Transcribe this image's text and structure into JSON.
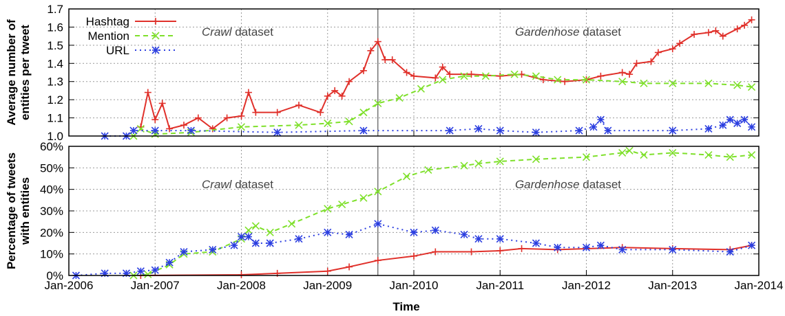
{
  "chart_data": [
    {
      "type": "line",
      "ylabel": "Average number of entities per tweet",
      "ylabel_lines": [
        "Average number of",
        "entities per tweet"
      ],
      "ylim": [
        1.0,
        1.7
      ],
      "yticks": [
        "1.0",
        "1.1",
        "1.2",
        "1.3",
        "1.4",
        "1.5",
        "1.6",
        "1.7"
      ],
      "grid": true,
      "legend": "top-left",
      "annotations": [
        {
          "italic": "Crawl",
          "text": " dataset"
        },
        {
          "italic": "Gardenhose",
          "text": " dataset"
        }
      ],
      "series": [
        {
          "name": "Hashtag",
          "color": "#e0302a",
          "marker": "plus",
          "points": [
            [
              "2006-11",
              1.05
            ],
            [
              "2006-12",
              1.24
            ],
            [
              "2007-01",
              1.09
            ],
            [
              "2007-02",
              1.18
            ],
            [
              "2007-03",
              1.04
            ],
            [
              "2007-05",
              1.06
            ],
            [
              "2007-07",
              1.1
            ],
            [
              "2007-09",
              1.04
            ],
            [
              "2007-11",
              1.1
            ],
            [
              "2008-01",
              1.11
            ],
            [
              "2008-02",
              1.24
            ],
            [
              "2008-03",
              1.13
            ],
            [
              "2008-06",
              1.13
            ],
            [
              "2008-09",
              1.17
            ],
            [
              "2008-12",
              1.13
            ],
            [
              "2009-01",
              1.22
            ],
            [
              "2009-02",
              1.25
            ],
            [
              "2009-03",
              1.22
            ],
            [
              "2009-04",
              1.3
            ],
            [
              "2009-06",
              1.36
            ],
            [
              "2009-07",
              1.47
            ],
            [
              "2009-08",
              1.52
            ],
            [
              "2009-09",
              1.42
            ],
            [
              "2009-10",
              1.42
            ],
            [
              "2009-12",
              1.35
            ],
            [
              "2010-01",
              1.33
            ],
            [
              "2010-04",
              1.32
            ],
            [
              "2010-05",
              1.38
            ],
            [
              "2010-06",
              1.34
            ],
            [
              "2010-09",
              1.34
            ],
            [
              "2011-01",
              1.33
            ],
            [
              "2011-04",
              1.34
            ],
            [
              "2011-07",
              1.31
            ],
            [
              "2011-10",
              1.3
            ],
            [
              "2012-01",
              1.31
            ],
            [
              "2012-03",
              1.33
            ],
            [
              "2012-06",
              1.35
            ],
            [
              "2012-07",
              1.34
            ],
            [
              "2012-08",
              1.4
            ],
            [
              "2012-10",
              1.41
            ],
            [
              "2012-11",
              1.46
            ],
            [
              "2013-01",
              1.48
            ],
            [
              "2013-02",
              1.51
            ],
            [
              "2013-04",
              1.56
            ],
            [
              "2013-06",
              1.57
            ],
            [
              "2013-07",
              1.58
            ],
            [
              "2013-08",
              1.55
            ],
            [
              "2013-10",
              1.59
            ],
            [
              "2013-11",
              1.61
            ],
            [
              "2013-12",
              1.64
            ]
          ]
        },
        {
          "name": "Mention",
          "color": "#7ee02a",
          "marker": "cross",
          "points": [
            [
              "2006-10",
              1.0
            ],
            [
              "2006-11",
              1.04
            ],
            [
              "2007-01",
              1.01
            ],
            [
              "2007-06",
              1.02
            ],
            [
              "2008-01",
              1.05
            ],
            [
              "2008-09",
              1.06
            ],
            [
              "2009-01",
              1.07
            ],
            [
              "2009-04",
              1.08
            ],
            [
              "2009-06",
              1.13
            ],
            [
              "2009-08",
              1.18
            ],
            [
              "2009-11",
              1.21
            ],
            [
              "2010-02",
              1.26
            ],
            [
              "2010-05",
              1.31
            ],
            [
              "2010-08",
              1.33
            ],
            [
              "2010-11",
              1.33
            ],
            [
              "2011-03",
              1.34
            ],
            [
              "2011-06",
              1.33
            ],
            [
              "2011-09",
              1.31
            ],
            [
              "2012-01",
              1.31
            ],
            [
              "2012-06",
              1.3
            ],
            [
              "2012-09",
              1.29
            ],
            [
              "2013-01",
              1.29
            ],
            [
              "2013-06",
              1.29
            ],
            [
              "2013-10",
              1.28
            ],
            [
              "2013-12",
              1.27
            ]
          ]
        },
        {
          "name": "URL",
          "color": "#2b3ee0",
          "marker": "star",
          "points": [
            [
              "2006-06",
              1.0
            ],
            [
              "2006-09",
              1.0
            ],
            [
              "2006-10",
              1.03
            ],
            [
              "2007-01",
              1.03
            ],
            [
              "2007-06",
              1.03
            ],
            [
              "2008-06",
              1.02
            ],
            [
              "2009-06",
              1.03
            ],
            [
              "2010-06",
              1.03
            ],
            [
              "2010-10",
              1.04
            ],
            [
              "2011-01",
              1.03
            ],
            [
              "2011-06",
              1.02
            ],
            [
              "2011-12",
              1.03
            ],
            [
              "2012-02",
              1.05
            ],
            [
              "2012-03",
              1.09
            ],
            [
              "2012-04",
              1.03
            ],
            [
              "2013-01",
              1.03
            ],
            [
              "2013-06",
              1.04
            ],
            [
              "2013-08",
              1.06
            ],
            [
              "2013-09",
              1.09
            ],
            [
              "2013-10",
              1.07
            ],
            [
              "2013-11",
              1.09
            ],
            [
              "2013-12",
              1.05
            ]
          ]
        }
      ]
    },
    {
      "type": "line",
      "ylabel": "Percentage of tweets with entities",
      "ylabel_lines": [
        "Percentage of tweets",
        "with entities"
      ],
      "xlabel": "Time",
      "ylim": [
        0,
        60
      ],
      "yticks": [
        "0%",
        "10%",
        "20%",
        "30%",
        "40%",
        "50%",
        "60%"
      ],
      "xticks": [
        "Jan-2006",
        "Jan-2007",
        "Jan-2008",
        "Jan-2009",
        "Jan-2010",
        "Jan-2011",
        "Jan-2012",
        "Jan-2013",
        "Jan-2014"
      ],
      "xlim": [
        "2006-01",
        "2014-01"
      ],
      "grid": true,
      "annotations": [
        {
          "italic": "Crawl",
          "text": " dataset"
        },
        {
          "italic": "Gardenhose",
          "text": " dataset"
        }
      ],
      "series": [
        {
          "name": "Hashtag",
          "color": "#e0302a",
          "marker": "plus",
          "points": [
            [
              "2006-11",
              0
            ],
            [
              "2008-01",
              0.3
            ],
            [
              "2008-06",
              1
            ],
            [
              "2009-01",
              2
            ],
            [
              "2009-04",
              4
            ],
            [
              "2009-08",
              7
            ],
            [
              "2010-01",
              9
            ],
            [
              "2010-04",
              11
            ],
            [
              "2010-09",
              11
            ],
            [
              "2011-01",
              11.5
            ],
            [
              "2011-04",
              12.5
            ],
            [
              "2011-09",
              12
            ],
            [
              "2012-06",
              13
            ],
            [
              "2013-01",
              12.5
            ],
            [
              "2013-09",
              12
            ],
            [
              "2013-12",
              14
            ]
          ]
        },
        {
          "name": "Mention",
          "color": "#7ee02a",
          "marker": "cross",
          "points": [
            [
              "2006-10",
              0
            ],
            [
              "2006-12",
              0.5
            ],
            [
              "2007-03",
              5
            ],
            [
              "2007-05",
              10
            ],
            [
              "2007-09",
              11
            ],
            [
              "2008-01",
              17
            ],
            [
              "2008-02",
              21
            ],
            [
              "2008-03",
              23
            ],
            [
              "2008-05",
              20
            ],
            [
              "2008-08",
              24
            ],
            [
              "2009-01",
              31
            ],
            [
              "2009-03",
              33
            ],
            [
              "2009-06",
              36
            ],
            [
              "2009-08",
              39
            ],
            [
              "2009-12",
              46
            ],
            [
              "2010-03",
              49
            ],
            [
              "2010-08",
              51
            ],
            [
              "2010-10",
              52
            ],
            [
              "2011-01",
              53
            ],
            [
              "2011-06",
              54
            ],
            [
              "2012-01",
              55
            ],
            [
              "2012-06",
              57
            ],
            [
              "2012-07",
              58
            ],
            [
              "2012-09",
              56
            ],
            [
              "2013-01",
              57
            ],
            [
              "2013-06",
              56
            ],
            [
              "2013-09",
              55
            ],
            [
              "2013-12",
              56
            ]
          ]
        },
        {
          "name": "URL",
          "color": "#2b3ee0",
          "marker": "star",
          "points": [
            [
              "2006-02",
              0
            ],
            [
              "2006-06",
              1
            ],
            [
              "2006-09",
              1
            ],
            [
              "2006-11",
              2
            ],
            [
              "2007-01",
              2.5
            ],
            [
              "2007-03",
              6
            ],
            [
              "2007-05",
              11
            ],
            [
              "2007-09",
              12
            ],
            [
              "2007-12",
              14
            ],
            [
              "2008-01",
              18
            ],
            [
              "2008-02",
              18
            ],
            [
              "2008-03",
              15
            ],
            [
              "2008-05",
              15
            ],
            [
              "2008-09",
              17
            ],
            [
              "2009-01",
              20
            ],
            [
              "2009-04",
              19
            ],
            [
              "2009-08",
              24
            ],
            [
              "2010-01",
              20
            ],
            [
              "2010-04",
              21
            ],
            [
              "2010-08",
              19
            ],
            [
              "2010-10",
              17
            ],
            [
              "2011-01",
              17
            ],
            [
              "2011-06",
              15
            ],
            [
              "2011-09",
              13
            ],
            [
              "2012-01",
              13
            ],
            [
              "2012-03",
              14
            ],
            [
              "2012-06",
              12
            ],
            [
              "2013-01",
              12
            ],
            [
              "2013-09",
              11
            ],
            [
              "2013-12",
              14
            ]
          ]
        }
      ]
    }
  ],
  "dataset_split": "2009-08"
}
